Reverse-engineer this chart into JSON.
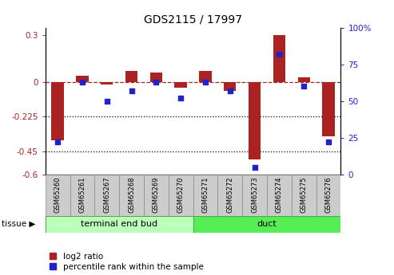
{
  "title": "GDS2115 / 17997",
  "samples": [
    "GSM65260",
    "GSM65261",
    "GSM65267",
    "GSM65268",
    "GSM65269",
    "GSM65270",
    "GSM65271",
    "GSM65272",
    "GSM65273",
    "GSM65274",
    "GSM65275",
    "GSM65276"
  ],
  "log2_ratio": [
    -0.38,
    0.04,
    -0.02,
    0.07,
    0.06,
    -0.04,
    0.07,
    -0.06,
    -0.5,
    0.3,
    0.03,
    -0.35
  ],
  "percentile_rank": [
    22,
    63,
    50,
    57,
    63,
    52,
    63,
    57,
    5,
    82,
    60,
    22
  ],
  "group1_label": "terminal end bud",
  "group1_count": 6,
  "group2_label": "duct",
  "group2_count": 6,
  "tissue_label": "tissue",
  "legend_log2": "log2 ratio",
  "legend_pct": "percentile rank within the sample",
  "bar_color": "#aa2222",
  "dot_color": "#2222cc",
  "group1_bg": "#bbffbb",
  "group2_bg": "#55ee55",
  "tick_bg": "#cccccc",
  "ylim_left": [
    -0.6,
    0.35
  ],
  "ylim_right": [
    0,
    100
  ],
  "yticks_left": [
    -0.6,
    -0.45,
    -0.225,
    0.0,
    0.3
  ],
  "yticks_left_labels": [
    "-0.6",
    "-0.45",
    "-0.225",
    "0",
    "0.3"
  ],
  "yticks_right": [
    0,
    25,
    50,
    75,
    100
  ],
  "yticks_right_labels": [
    "0",
    "25",
    "50",
    "75",
    "100%"
  ],
  "hlines": [
    -0.225,
    -0.45
  ],
  "zero_line_y": 0.0,
  "bar_width": 0.5
}
